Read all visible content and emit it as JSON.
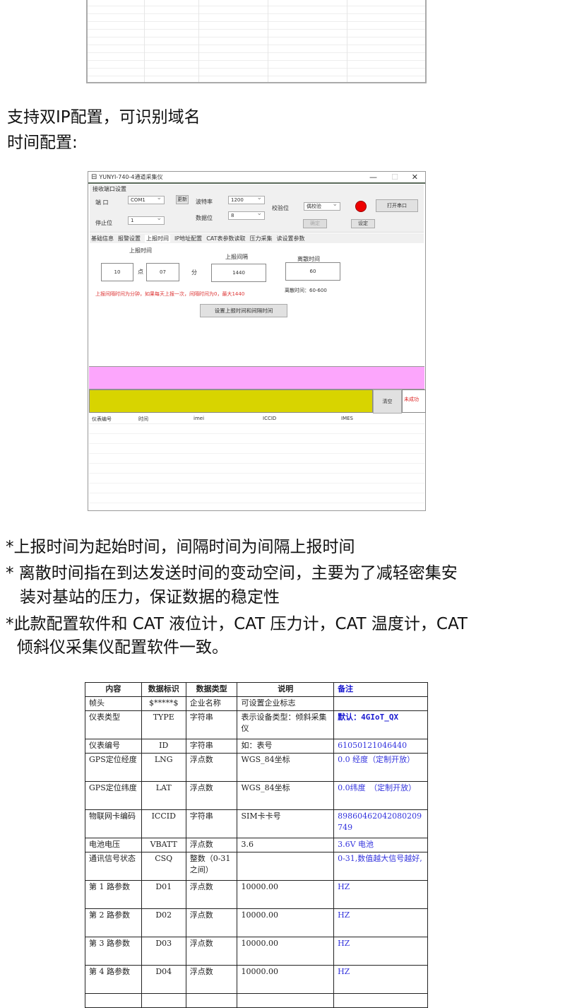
{
  "paragraphs": [
    "支持双IP配置，可识别域名",
    "时间配置:"
  ],
  "window": {
    "title": "YUNYI-740-4通道采集仪",
    "controls": [
      "—",
      "☐",
      "✕"
    ],
    "group_title": "接收端口设置",
    "port_label": "端 口",
    "port_value": "COM1",
    "refresh_button": "更新",
    "baud_label": "波特率",
    "baud_value": "1200",
    "parity_label": "校验位",
    "parity_value": "偶校验",
    "open_button": "打开串口",
    "stop_label": "停止位",
    "stop_value": "1",
    "data_label": "数据位",
    "data_value": "8",
    "confirm_button": "确定",
    "set_button": "设定",
    "status_light_color": "#ee0000",
    "tabs": [
      "基础信息",
      "报警设置",
      "上报时间",
      "IP地址配置",
      "CAT表参数读取",
      "压力采集",
      "读设置参数"
    ],
    "active_tab": "上报时间",
    "report_time_label": "上报时间",
    "hour_value": "10",
    "hour_unit": "点",
    "minute_value": "07",
    "minute_unit": "分",
    "interval_label": "上报间隔",
    "interval_value": "1440",
    "discrete_label": "离散时间",
    "discrete_value": "60",
    "discrete_hint": "离散时间：60-600",
    "warning_text": "上报间隔时间为分钟，如果每天上报一次，间隔时间为0，最大1440",
    "set_report_button": "设置上报时间和间隔时间",
    "clear_button": "清空",
    "status_text": "未成功",
    "list_headers": [
      "仪表编号",
      "时间",
      "imei",
      "ICCID",
      "IMES"
    ]
  },
  "notes": [
    "*上报时间为起始时间，间隔时间为间隔上报时间",
    "* 离散时间指在到达发送时间的变动空间，主要为了减轻密集安",
    "装对基站的压力，保证数据的稳定性",
    "*此款配置软件和 CAT 液位计，CAT 压力计，CAT 温度计，CAT",
    "倾斜仪采集仪配置软件一致。"
  ],
  "table": {
    "headers": [
      "内容",
      "数据标识",
      "数据类型",
      "说明",
      "备注"
    ],
    "rows": [
      [
        "帧头",
        "$*****$",
        "企业名称",
        "可设置企业标志",
        ""
      ],
      [
        "仪表类型",
        "TYPE",
        "字符串",
        "表示设备类型：倾斜采集仪",
        "默认：4GIoT_QX"
      ],
      [
        "仪表编号",
        "ID",
        "字符串",
        "如：表号",
        "61050121046440"
      ],
      [
        "GPS定位经度",
        "LNG",
        "浮点数",
        "WGS_84坐标",
        "0.0 经度（定制开放）"
      ],
      [
        "GPS定位纬度",
        "LAT",
        "浮点数",
        "WGS_84坐标",
        "0.0纬度　（定制开放）"
      ],
      [
        "物联网卡编码",
        "ICCID",
        "字符串",
        "SIM卡卡号",
        "89860462042080209749"
      ],
      [
        "电池电压",
        "VBATT",
        "浮点数",
        "3.6",
        "3.6V 电池"
      ],
      [
        "通讯信号状态",
        "CSQ",
        "整数（0-31之间）",
        "",
        "0-31,数值越大信号越好,"
      ],
      [
        "第 1 路参数",
        "D01",
        "浮点数",
        "10000.00",
        "HZ"
      ],
      [
        "第 2 路参数",
        "D02",
        "浮点数",
        "10000.00",
        "HZ"
      ],
      [
        "第 3 路参数",
        "D03",
        "浮点数",
        "10000.00",
        "HZ"
      ],
      [
        "第 4 路参数",
        "D04",
        "浮点数",
        "10000.00",
        "HZ"
      ],
      [
        "",
        "",
        "",
        "",
        ""
      ]
    ]
  }
}
